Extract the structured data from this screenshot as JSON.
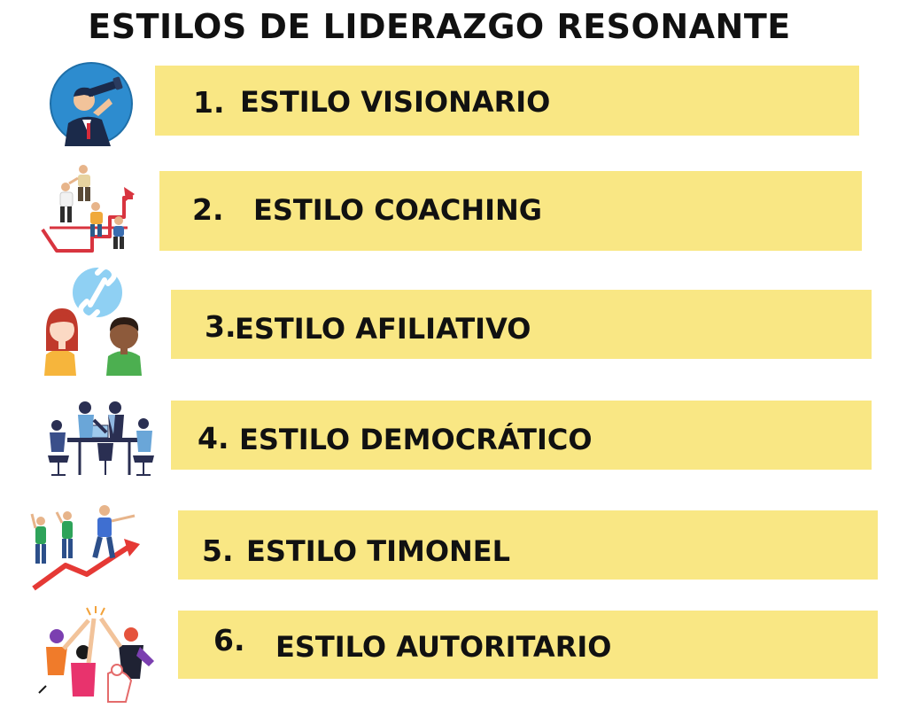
{
  "title": "ESTILOS DE LIDERAZGO RESONANTE",
  "colors": {
    "band": "#f9e784",
    "text": "#111111"
  },
  "items": [
    {
      "number": "1.",
      "label": "ESTILO VISIONARIO",
      "icon": "visionary-spyglass-icon"
    },
    {
      "number": "2.",
      "label": "ESTILO COACHING",
      "icon": "coaching-stairs-icon"
    },
    {
      "number": "3.",
      "label": "ESTILO AFILIATIVO",
      "icon": "affiliative-link-icon"
    },
    {
      "number": "4.",
      "label": "ESTILO DEMOCRÁTICO",
      "icon": "democratic-meeting-icon"
    },
    {
      "number": "5.",
      "label": "ESTILO TIMONEL",
      "icon": "pacesetting-arrow-icon"
    },
    {
      "number": "6.",
      "label": "ESTILO AUTORITARIO",
      "icon": "authoritative-highfive-icon"
    }
  ]
}
